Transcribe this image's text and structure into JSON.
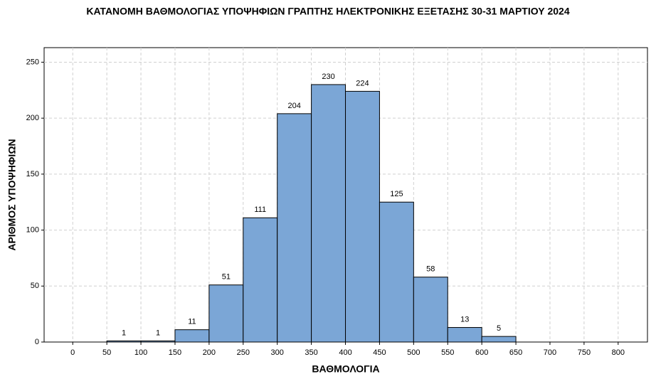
{
  "chart_data": {
    "type": "histogram",
    "title": "ΚΑΤΑΝΟΜΗ ΒΑΘΜΟΛΟΓΙΑΣ ΥΠΟΨΗΦΙΩΝ ΓΡΑΠΤΗΣ ΗΛΕΚΤΡΟΝΙΚΗΣ ΕΞΕΤΑΣΗΣ 30-31 ΜΑΡΤΙΟΥ 2024",
    "x_label": "ΒΑΘΜΟΛΟΓΙΑ",
    "y_label": "ΑΡΙΘΜΟΣ ΥΠΟΨΗΦΙΩΝ",
    "bins": [
      50,
      100,
      150,
      200,
      250,
      300,
      350,
      400,
      450,
      500,
      550,
      600,
      650
    ],
    "values": [
      1,
      1,
      11,
      51,
      111,
      204,
      230,
      224,
      125,
      58,
      13,
      5
    ],
    "color": "#7ba6d6",
    "xlim": [
      -42,
      843
    ],
    "xticks": [
      0,
      50,
      100,
      150,
      200,
      250,
      300,
      350,
      400,
      450,
      500,
      550,
      600,
      650,
      700,
      750,
      800
    ],
    "ylim": [
      0,
      263
    ],
    "yticks": [
      0,
      50,
      100,
      150,
      200,
      250
    ],
    "grid": true
  }
}
